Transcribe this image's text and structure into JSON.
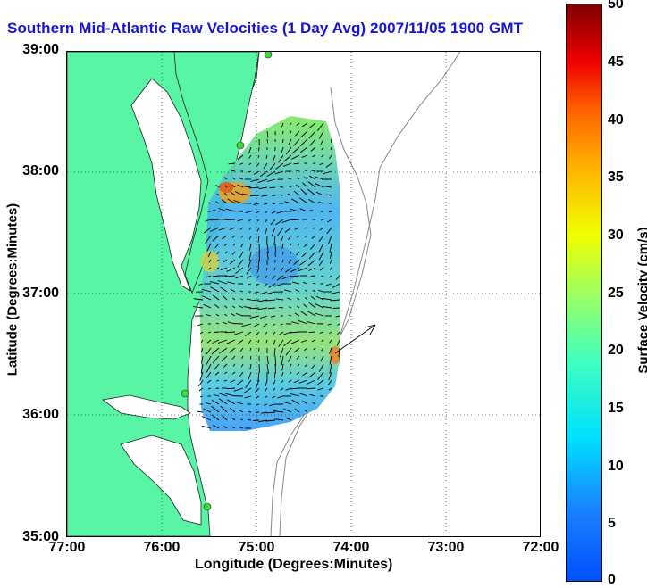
{
  "title": "Southern Mid-Atlantic Raw Velocities (1 Day Avg) 2007/11/05 1900 GMT",
  "xlabel": "Longitude (Degrees:Minutes)",
  "ylabel": "Latitude (Degrees:Minutes)",
  "x_ticks": [
    "77:00",
    "76:00",
    "75:00",
    "74:00",
    "73:00",
    "72:00"
  ],
  "y_ticks": [
    "39:00",
    "38:00",
    "37:00",
    "36:00",
    "35:00"
  ],
  "colorbar": {
    "label": "Surface Velocity (cm/s)",
    "ticks": [
      "50",
      "45",
      "40",
      "35",
      "30",
      "25",
      "20",
      "15",
      "10",
      "5",
      "0"
    ],
    "range": [
      0,
      50
    ]
  },
  "map": {
    "lon_range": [
      -77,
      -72
    ],
    "lat_range": [
      35,
      39
    ],
    "land_color": "#59f5a6",
    "water_color": "#ffffff",
    "station_color": "#3ddc3d",
    "grid": "dotted",
    "colormap": "jet"
  }
}
